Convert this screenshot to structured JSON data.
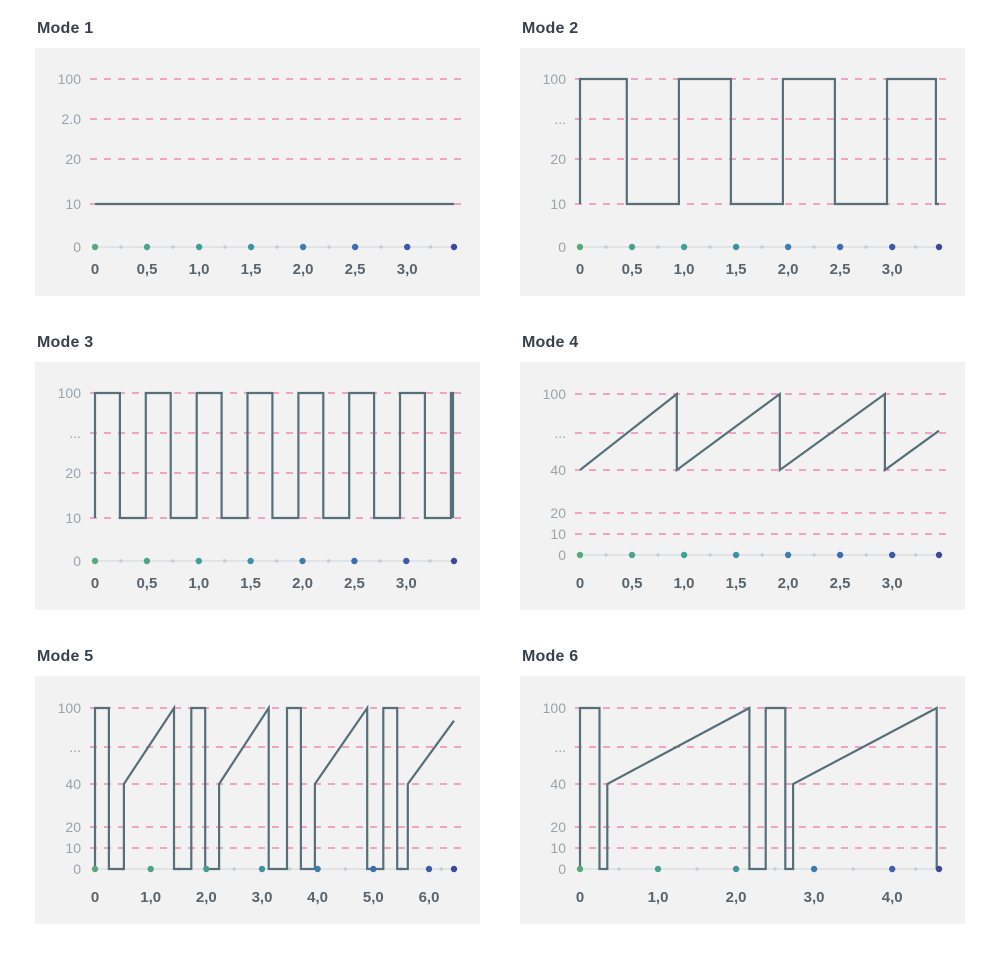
{
  "style": {
    "page_bg": "#ffffff",
    "panel_bg": "#f2f2f3",
    "grid_color": "#ee8bb2",
    "line_color": "#566f79",
    "axis_color": "#dbdfe2",
    "minor_dot_color": "#c7cdd2",
    "title_color": "#39424b",
    "y_label_color": "#9ba3ab",
    "x_label_color": "#5a646d",
    "dot_gradient": [
      "#57a97c",
      "#3f9d9b",
      "#3e72b2",
      "#3c4899"
    ]
  },
  "chart_data": [
    {
      "type": "line",
      "title": "Mode 1",
      "grid": "horizontal-dashed",
      "legend": "none",
      "domain": [
        0,
        3.45
      ],
      "x_ticks": [
        {
          "t": 0,
          "label": "0"
        },
        {
          "t": 0.5,
          "label": "0,5"
        },
        {
          "t": 1.0,
          "label": "1,0"
        },
        {
          "t": 1.5,
          "label": "1,5"
        },
        {
          "t": 2.0,
          "label": "2,0"
        },
        {
          "t": 2.5,
          "label": "2,5"
        },
        {
          "t": 3.0,
          "label": "3,0"
        }
      ],
      "end_dot_t": 3.45,
      "y_ticks": [
        {
          "label": "100",
          "value": 100,
          "py": 31
        },
        {
          "label": "2.0",
          "py": 71
        },
        {
          "label": "20",
          "value": 20,
          "py": 111
        },
        {
          "label": "10",
          "value": 10,
          "py": 156
        },
        {
          "label": "0",
          "value": 0,
          "py": 199
        }
      ],
      "points": [
        [
          0,
          10
        ],
        [
          3.45,
          10
        ]
      ]
    },
    {
      "type": "line",
      "title": "Mode 2",
      "grid": "horizontal-dashed",
      "legend": "none",
      "domain": [
        0,
        3.45
      ],
      "x_ticks": [
        {
          "t": 0,
          "label": "0"
        },
        {
          "t": 0.5,
          "label": "0,5"
        },
        {
          "t": 1.0,
          "label": "1,0"
        },
        {
          "t": 1.5,
          "label": "1,5"
        },
        {
          "t": 2.0,
          "label": "2,0"
        },
        {
          "t": 2.5,
          "label": "2,5"
        },
        {
          "t": 3.0,
          "label": "3,0"
        }
      ],
      "end_dot_t": 3.45,
      "y_ticks": [
        {
          "label": "100",
          "value": 100,
          "py": 31
        },
        {
          "label": "...",
          "py": 71
        },
        {
          "label": "20",
          "value": 20,
          "py": 111
        },
        {
          "label": "10",
          "value": 10,
          "py": 156
        },
        {
          "label": "0",
          "value": 0,
          "py": 199
        }
      ],
      "points": [
        [
          0,
          10
        ],
        [
          0,
          100
        ],
        [
          0.45,
          100
        ],
        [
          0.45,
          10
        ],
        [
          0.95,
          10
        ],
        [
          0.95,
          100
        ],
        [
          1.45,
          100
        ],
        [
          1.45,
          10
        ],
        [
          1.95,
          10
        ],
        [
          1.95,
          100
        ],
        [
          2.45,
          100
        ],
        [
          2.45,
          10
        ],
        [
          2.95,
          10
        ],
        [
          2.95,
          100
        ],
        [
          3.42,
          100
        ],
        [
          3.42,
          10
        ],
        [
          3.45,
          10
        ]
      ]
    },
    {
      "type": "line",
      "title": "Mode 3",
      "grid": "horizontal-dashed",
      "legend": "none",
      "domain": [
        0,
        3.46
      ],
      "x_ticks": [
        {
          "t": 0,
          "label": "0"
        },
        {
          "t": 0.5,
          "label": "0,5"
        },
        {
          "t": 1.0,
          "label": "1,0"
        },
        {
          "t": 1.5,
          "label": "1,5"
        },
        {
          "t": 2.0,
          "label": "2,0"
        },
        {
          "t": 2.5,
          "label": "2,5"
        },
        {
          "t": 3.0,
          "label": "3,0"
        }
      ],
      "end_dot_t": 3.46,
      "y_ticks": [
        {
          "label": "100",
          "value": 100,
          "py": 31
        },
        {
          "label": "...",
          "py": 71
        },
        {
          "label": "20",
          "value": 20,
          "py": 111
        },
        {
          "label": "10",
          "value": 10,
          "py": 156
        },
        {
          "label": "0",
          "value": 0,
          "py": 199
        }
      ],
      "points": [
        [
          0,
          10
        ],
        [
          0,
          100
        ],
        [
          0.24,
          100
        ],
        [
          0.24,
          10
        ],
        [
          0.49,
          10
        ],
        [
          0.49,
          100
        ],
        [
          0.73,
          100
        ],
        [
          0.73,
          10
        ],
        [
          0.98,
          10
        ],
        [
          0.98,
          100
        ],
        [
          1.22,
          100
        ],
        [
          1.22,
          10
        ],
        [
          1.47,
          10
        ],
        [
          1.47,
          100
        ],
        [
          1.71,
          100
        ],
        [
          1.71,
          10
        ],
        [
          1.96,
          10
        ],
        [
          1.96,
          100
        ],
        [
          2.2,
          100
        ],
        [
          2.2,
          10
        ],
        [
          2.45,
          10
        ],
        [
          2.45,
          100
        ],
        [
          2.69,
          100
        ],
        [
          2.69,
          10
        ],
        [
          2.94,
          10
        ],
        [
          2.94,
          100
        ],
        [
          3.18,
          100
        ],
        [
          3.18,
          10
        ],
        [
          3.43,
          10
        ],
        [
          3.43,
          100
        ],
        [
          3.45,
          100
        ],
        [
          3.45,
          10
        ]
      ]
    },
    {
      "type": "line",
      "title": "Mode 4",
      "grid": "horizontal-dashed",
      "legend": "none",
      "domain": [
        0,
        3.45
      ],
      "x_ticks": [
        {
          "t": 0,
          "label": "0"
        },
        {
          "t": 0.5,
          "label": "0,5"
        },
        {
          "t": 1.0,
          "label": "1,0"
        },
        {
          "t": 1.5,
          "label": "1,5"
        },
        {
          "t": 2.0,
          "label": "2,0"
        },
        {
          "t": 2.5,
          "label": "2,5"
        },
        {
          "t": 3.0,
          "label": "3,0"
        }
      ],
      "end_dot_t": 3.45,
      "y_ticks": [
        {
          "label": "100",
          "value": 100,
          "py": 32
        },
        {
          "label": "...",
          "py": 71
        },
        {
          "label": "40",
          "value": 40,
          "py": 108
        },
        {
          "label": "20",
          "value": 20,
          "py": 151
        },
        {
          "label": "10",
          "value": 10,
          "py": 172
        },
        {
          "label": "0",
          "value": 0,
          "py": 193
        }
      ],
      "points": [
        [
          0,
          40
        ],
        [
          0.93,
          100
        ],
        [
          0.93,
          40
        ],
        [
          1.92,
          100
        ],
        [
          1.92,
          40
        ],
        [
          2.93,
          100
        ],
        [
          2.93,
          40
        ],
        [
          3.45,
          71
        ]
      ]
    },
    {
      "type": "line",
      "title": "Mode 5",
      "grid": "horizontal-dashed",
      "legend": "none",
      "domain": [
        0,
        6.45
      ],
      "x_ticks": [
        {
          "t": 0,
          "label": "0"
        },
        {
          "t": 1.0,
          "label": "1,0"
        },
        {
          "t": 2.0,
          "label": "2,0"
        },
        {
          "t": 3.0,
          "label": "3,0"
        },
        {
          "t": 4.0,
          "label": "4,0"
        },
        {
          "t": 5.0,
          "label": "5,0"
        },
        {
          "t": 6.0,
          "label": "6,0"
        }
      ],
      "end_dot_t": 6.45,
      "y_ticks": [
        {
          "label": "100",
          "value": 100,
          "py": 32
        },
        {
          "label": "...",
          "py": 71
        },
        {
          "label": "40",
          "value": 40,
          "py": 108
        },
        {
          "label": "20",
          "value": 20,
          "py": 151
        },
        {
          "label": "10",
          "value": 10,
          "py": 172
        },
        {
          "label": "0",
          "value": 0,
          "py": 193
        }
      ],
      "points": [
        [
          0,
          0
        ],
        [
          0,
          100
        ],
        [
          0.25,
          100
        ],
        [
          0.25,
          0
        ],
        [
          0.52,
          0
        ],
        [
          0.52,
          40
        ],
        [
          1.42,
          100
        ],
        [
          1.42,
          0
        ],
        [
          1.73,
          0
        ],
        [
          1.73,
          100
        ],
        [
          1.98,
          100
        ],
        [
          1.98,
          0
        ],
        [
          2.23,
          0
        ],
        [
          2.23,
          40
        ],
        [
          3.12,
          100
        ],
        [
          3.12,
          0
        ],
        [
          3.45,
          0
        ],
        [
          3.45,
          100
        ],
        [
          3.7,
          100
        ],
        [
          3.7,
          0
        ],
        [
          3.95,
          0
        ],
        [
          3.95,
          40
        ],
        [
          4.89,
          100
        ],
        [
          4.89,
          0
        ],
        [
          5.18,
          0
        ],
        [
          5.18,
          100
        ],
        [
          5.43,
          100
        ],
        [
          5.43,
          0
        ],
        [
          5.62,
          0
        ],
        [
          5.62,
          40
        ],
        [
          6.45,
          90
        ]
      ]
    },
    {
      "type": "line",
      "title": "Mode 6",
      "grid": "horizontal-dashed",
      "legend": "none",
      "domain": [
        0,
        4.6
      ],
      "x_ticks": [
        {
          "t": 0,
          "label": "0"
        },
        {
          "t": 1.0,
          "label": "1,0"
        },
        {
          "t": 2.0,
          "label": "2,0"
        },
        {
          "t": 3.0,
          "label": "3,0"
        },
        {
          "t": 4.0,
          "label": "4,0"
        }
      ],
      "end_dot_t": 4.6,
      "y_ticks": [
        {
          "label": "100",
          "value": 100,
          "py": 32
        },
        {
          "label": "...",
          "py": 71
        },
        {
          "label": "40",
          "value": 40,
          "py": 108
        },
        {
          "label": "20",
          "value": 20,
          "py": 151
        },
        {
          "label": "10",
          "value": 10,
          "py": 172
        },
        {
          "label": "0",
          "value": 0,
          "py": 193
        }
      ],
      "points": [
        [
          0,
          0
        ],
        [
          0,
          100
        ],
        [
          0.25,
          100
        ],
        [
          0.25,
          0
        ],
        [
          0.35,
          0
        ],
        [
          0.35,
          40
        ],
        [
          2.17,
          100
        ],
        [
          2.17,
          0
        ],
        [
          2.38,
          0
        ],
        [
          2.38,
          100
        ],
        [
          2.63,
          100
        ],
        [
          2.63,
          0
        ],
        [
          2.73,
          0
        ],
        [
          2.73,
          40
        ],
        [
          4.57,
          100
        ],
        [
          4.57,
          0
        ]
      ]
    }
  ]
}
